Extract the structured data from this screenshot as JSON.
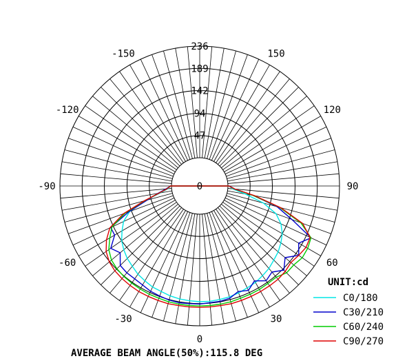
{
  "chart_data": {
    "type": "polar",
    "unit_label": "UNIT:cd",
    "footer": "AVERAGE BEAM ANGLE(50%):115.8 DEG",
    "r_ticks": [
      "0",
      "47",
      "94",
      "142",
      "189",
      "236"
    ],
    "r_values": [
      0,
      47,
      94,
      142,
      189,
      236
    ],
    "r_max": 236,
    "angle_ticks": [
      {
        "angle": 0,
        "label": "0"
      },
      {
        "angle": 30,
        "label": "30"
      },
      {
        "angle": 60,
        "label": "60"
      },
      {
        "angle": 90,
        "label": "90"
      },
      {
        "angle": 120,
        "label": "120"
      },
      {
        "angle": 150,
        "label": "150"
      },
      {
        "angle": -30,
        "label": "-30"
      },
      {
        "angle": -60,
        "label": "-60"
      },
      {
        "angle": -90,
        "label": "-90"
      },
      {
        "angle": -120,
        "label": "-120"
      },
      {
        "angle": -150,
        "label": "-150"
      },
      {
        "angle": 180,
        "label": "236"
      }
    ],
    "angle_convention": "0 = straight down, positive = toward right",
    "series": [
      {
        "name": "C0/180",
        "color": "#00e5e5",
        "angles": [
          -90,
          -85,
          -80,
          -75,
          -70,
          -65,
          -60,
          -55,
          -50,
          -45,
          -40,
          -35,
          -30,
          -25,
          -20,
          -15,
          -10,
          -5,
          0,
          5,
          10,
          15,
          20,
          25,
          30,
          35,
          40,
          45,
          50,
          55,
          60,
          65,
          70,
          75,
          80,
          85,
          90
        ],
        "values": [
          2,
          8,
          25,
          60,
          98,
          118,
          130,
          142,
          150,
          157,
          162,
          168,
          172,
          176,
          178,
          181,
          183,
          184,
          185,
          185,
          184,
          183,
          181,
          178,
          176,
          172,
          168,
          162,
          157,
          150,
          142,
          130,
          112,
          80,
          38,
          10,
          2
        ]
      },
      {
        "name": "C30/210",
        "color": "#0000cc",
        "angles": [
          -90,
          -85,
          -80,
          -75,
          -70,
          -65,
          -60,
          -55,
          -50,
          -45,
          -40,
          -35,
          -30,
          -25,
          -20,
          -15,
          -10,
          -5,
          0,
          5,
          10,
          15,
          20,
          25,
          30,
          35,
          40,
          45,
          50,
          55,
          60,
          65,
          70,
          75,
          80,
          85,
          90
        ],
        "values": [
          2,
          12,
          30,
          55,
          100,
          148,
          148,
          170,
          160,
          178,
          180,
          180,
          182,
          186,
          188,
          190,
          191,
          190,
          190,
          188,
          188,
          186,
          178,
          184,
          172,
          185,
          178,
          192,
          176,
          196,
          182,
          200,
          148,
          110,
          55,
          15,
          3
        ]
      },
      {
        "name": "C60/240",
        "color": "#00cc00",
        "angles": [
          -90,
          -85,
          -80,
          -75,
          -70,
          -65,
          -60,
          -55,
          -50,
          -45,
          -40,
          -35,
          -30,
          -25,
          -20,
          -15,
          -10,
          -5,
          0,
          5,
          10,
          15,
          20,
          25,
          30,
          35,
          40,
          45,
          50,
          55,
          60,
          65,
          70,
          75,
          80,
          85,
          90
        ],
        "values": [
          2,
          10,
          28,
          60,
          108,
          145,
          160,
          175,
          184,
          188,
          190,
          191,
          192,
          193,
          193,
          194,
          194,
          194,
          194,
          194,
          194,
          194,
          193,
          193,
          193,
          192,
          192,
          200,
          200,
          205,
          204,
          200,
          168,
          115,
          55,
          14,
          2
        ]
      },
      {
        "name": "C90/270",
        "color": "#dd0000",
        "angles": [
          -90,
          -85,
          -80,
          -75,
          -70,
          -65,
          -60,
          -55,
          -50,
          -45,
          -40,
          -35,
          -30,
          -25,
          -20,
          -15,
          -10,
          -5,
          0,
          5,
          10,
          15,
          20,
          25,
          30,
          35,
          40,
          45,
          50,
          55,
          60,
          65,
          70,
          75,
          80,
          85,
          90
        ],
        "values": [
          2,
          10,
          28,
          62,
          112,
          150,
          168,
          182,
          190,
          194,
          196,
          197,
          198,
          198,
          198,
          198,
          197,
          197,
          197,
          197,
          197,
          198,
          198,
          198,
          198,
          198,
          198,
          196,
          192,
          196,
          200,
          198,
          172,
          118,
          58,
          15,
          2
        ]
      }
    ]
  }
}
